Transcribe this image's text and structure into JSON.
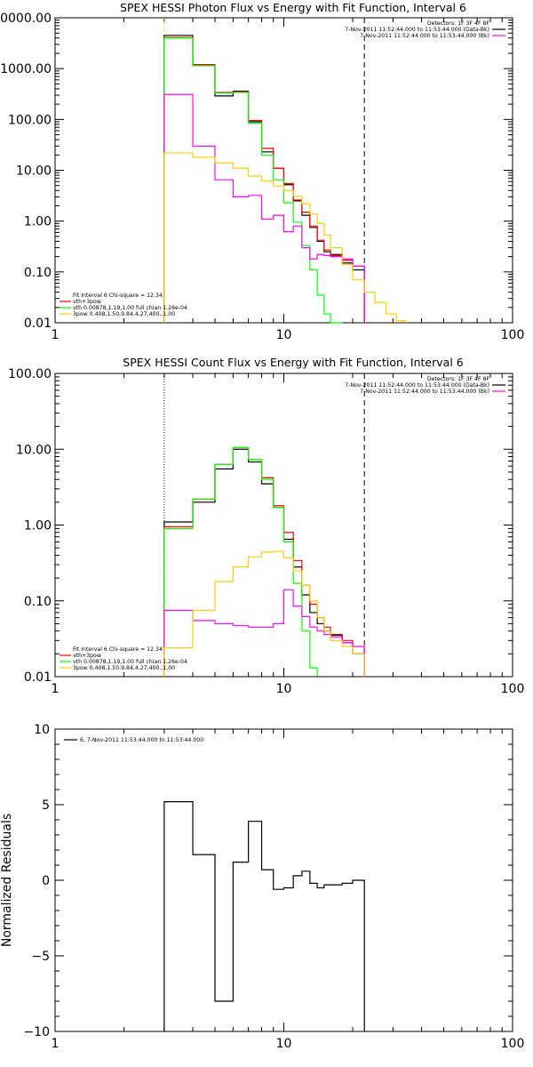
{
  "chart_data": [
    {
      "type": "line",
      "title": "SPEX HESSI Photon Flux vs Energy with Fit Function, Interval 6",
      "xlabel": "",
      "ylabel": "",
      "xscale": "log",
      "yscale": "log",
      "xlim": [
        1,
        100
      ],
      "ylim": [
        0.01,
        10000
      ],
      "x_tick_labels": [
        "1",
        "10",
        "100"
      ],
      "y_tick_labels": [
        "0.01",
        "0.10",
        "1.00",
        "10.00",
        "100.00",
        "1000.00",
        "10000.00"
      ],
      "info_lines": [
        {
          "text": "Detectors: 1F 3F 4F 8F"
        },
        {
          "text": "7-Nov-2011 11:52:44.000 to 11:53:44.000 (Data-Bk)",
          "color": "#000000"
        },
        {
          "text": "7-Nov-2011 11:52:44.000 to 11:53:44.000 (Bk)",
          "color": "#ff00ff"
        }
      ],
      "fit_legend": [
        {
          "text": "Fit Interval 6   Chi-square = 12.34"
        },
        {
          "text": "vth+3pow",
          "color": "#ff0000"
        },
        {
          "text": "vth 0.00878,1.19,1.00  full chian 1.26e-04",
          "color": "#00ff00"
        },
        {
          "text": "3pow 0.408,1.50,9.84,4.27,400.,1.00",
          "color": "#ffcc00"
        }
      ],
      "vlines": [
        {
          "x": 3.0,
          "style": "dotted",
          "color": "#ffcc00"
        },
        {
          "x": 22.5,
          "style": "dashed",
          "color": "#000000"
        }
      ],
      "series": [
        {
          "color": "#000000",
          "edges": [
            3,
            4,
            5,
            6,
            7,
            8,
            9,
            10,
            11,
            12,
            13,
            14,
            15,
            16,
            18,
            20,
            22.5
          ],
          "values": [
            4500,
            1150,
            290,
            360,
            90,
            23,
            11,
            5.2,
            2.5,
            1.3,
            0.75,
            0.4,
            0.25,
            0.22,
            0.15,
            0.11
          ]
        },
        {
          "color": "#ff0000",
          "edges": [
            3,
            4,
            5,
            6,
            7,
            8,
            9,
            10,
            11,
            12,
            13,
            14,
            15,
            16,
            18,
            20,
            22.5
          ],
          "values": [
            4100,
            1200,
            340,
            350,
            95,
            27,
            11,
            5.5,
            2.6,
            1.5,
            0.8,
            0.42,
            0.27,
            0.21,
            0.17,
            0.13
          ]
        },
        {
          "color": "#00ff00",
          "edges": [
            3,
            4,
            5,
            6,
            7,
            8,
            9,
            10,
            11,
            12,
            13,
            14,
            15,
            16,
            18
          ],
          "values": [
            4000,
            1150,
            330,
            340,
            85,
            20,
            6.5,
            2.3,
            0.95,
            0.33,
            0.11,
            0.035,
            0.015,
            0.01
          ]
        },
        {
          "color": "#ff00ff",
          "edges": [
            3,
            4,
            5,
            6,
            7,
            8,
            9,
            10,
            11,
            12,
            13,
            14,
            15,
            16,
            18,
            20,
            22.5
          ],
          "values": [
            310,
            30,
            6.5,
            3,
            3.2,
            1.1,
            1.3,
            0.62,
            0.8,
            0.3,
            0.18,
            0.22,
            0.21,
            0.2,
            0.18,
            0.13
          ]
        },
        {
          "color": "#ffcc00",
          "edges": [
            3,
            4,
            5,
            6,
            7,
            8,
            9,
            10,
            11,
            12,
            13,
            14,
            15,
            16,
            18,
            20,
            22.5,
            25,
            28,
            31,
            34
          ],
          "values": [
            22,
            18,
            14,
            11,
            7.7,
            6.1,
            4.9,
            4,
            3.1,
            2.2,
            1.4,
            0.9,
            0.53,
            0.3,
            0.14,
            0.07,
            0.04,
            0.025,
            0.015,
            0.011
          ]
        }
      ]
    },
    {
      "type": "line",
      "title": "SPEX HESSI Count Flux vs Energy with Fit Function, Interval 6",
      "xlabel": "",
      "ylabel": "",
      "xscale": "log",
      "yscale": "log",
      "xlim": [
        1,
        100
      ],
      "ylim": [
        0.01,
        100
      ],
      "x_tick_labels": [
        "1",
        "10",
        "100"
      ],
      "y_tick_labels": [
        "0.01",
        "0.10",
        "1.00",
        "10.00",
        "100.00"
      ],
      "info_lines": [
        {
          "text": "Detectors: 1F 3F 4F 8F"
        },
        {
          "text": "7-Nov-2011 11:52:44.000 to 11:53:44.000 (Data-Bk)",
          "color": "#000000"
        },
        {
          "text": "7-Nov-2011 11:52:44.000 to 11:53:44.000 (Bk)",
          "color": "#ff00ff"
        }
      ],
      "fit_legend": [
        {
          "text": "Fit Interval 6   Chi-square = 12.34"
        },
        {
          "text": "vth+3pow",
          "color": "#ff0000"
        },
        {
          "text": "vth 0.00878,1.19,1.00  full chian 1.26e-04",
          "color": "#00ff00"
        },
        {
          "text": "3pow 0.408,1.50,9.84,4.27,400.,1.00",
          "color": "#ffcc00"
        }
      ],
      "vlines": [
        {
          "x": 3.0,
          "style": "dotted",
          "color": "#000000"
        },
        {
          "x": 22.5,
          "style": "dashed",
          "color": "#000000"
        }
      ],
      "series": [
        {
          "color": "#000000",
          "edges": [
            3,
            4,
            5,
            6,
            7,
            8,
            9,
            10,
            11,
            12,
            13,
            14,
            15,
            16,
            18,
            20,
            22.5
          ],
          "values": [
            1.1,
            2.0,
            5.5,
            10.0,
            6.8,
            3.5,
            1.7,
            0.65,
            0.28,
            0.12,
            0.07,
            0.05,
            0.04,
            0.035,
            0.028,
            0.02
          ]
        },
        {
          "color": "#ff0000",
          "edges": [
            3,
            4,
            5,
            6,
            7,
            8,
            9,
            10,
            11,
            12,
            13,
            14,
            15,
            16,
            18,
            20,
            22.5
          ],
          "values": [
            0.95,
            2.2,
            6.3,
            10.5,
            7.3,
            4.2,
            1.8,
            0.8,
            0.34,
            0.16,
            0.09,
            0.06,
            0.045,
            0.036,
            0.03,
            0.025
          ]
        },
        {
          "color": "#00ff00",
          "edges": [
            3,
            4,
            5,
            6,
            7,
            8,
            9,
            10,
            11,
            12,
            13,
            14
          ],
          "values": [
            0.9,
            2.2,
            6.3,
            10.5,
            7.3,
            4.0,
            1.7,
            0.6,
            0.17,
            0.04,
            0.013
          ]
        },
        {
          "color": "#ff00ff",
          "edges": [
            3,
            4,
            5,
            6,
            7,
            8,
            9,
            10,
            11,
            12,
            13,
            14,
            15,
            16,
            18,
            20,
            22.5
          ],
          "values": [
            0.075,
            0.055,
            0.05,
            0.047,
            0.045,
            0.045,
            0.05,
            0.14,
            0.085,
            0.062,
            0.045,
            0.04,
            0.036,
            0.033,
            0.028,
            0.025
          ]
        },
        {
          "color": "#ffcc00",
          "edges": [
            3,
            4,
            5,
            6,
            7,
            8,
            9,
            10,
            11,
            12,
            13,
            14,
            15,
            16,
            18,
            20,
            22.5
          ],
          "values": [
            0.024,
            0.075,
            0.18,
            0.28,
            0.38,
            0.44,
            0.45,
            0.37,
            0.25,
            0.16,
            0.1,
            0.06,
            0.04,
            0.03,
            0.025,
            0.02
          ]
        }
      ]
    },
    {
      "type": "line",
      "title": "",
      "xlabel": "",
      "ylabel": "Normalized Residuals",
      "xscale": "log",
      "yscale": "linear",
      "xlim": [
        1,
        100
      ],
      "ylim": [
        -10,
        10
      ],
      "x_tick_labels": [
        "1",
        "10",
        "100"
      ],
      "y_tick_labels": [
        "−10",
        "−5",
        "0",
        "5",
        "10"
      ],
      "info_lines": [
        {
          "text": "6,  7-Nov-2011 11:53:44.000 to 11:53:44.000",
          "color": "#000000"
        }
      ],
      "series": [
        {
          "color": "#000000",
          "edges": [
            3,
            4,
            5,
            6,
            7,
            8,
            9,
            10,
            11,
            12,
            13,
            14,
            15,
            16,
            18,
            20,
            22.5
          ],
          "values": [
            5.2,
            1.7,
            -8.0,
            1.2,
            3.9,
            0.7,
            -0.6,
            -0.5,
            0.3,
            0.6,
            -0.2,
            -0.5,
            -0.3,
            -0.3,
            -0.2,
            0.0
          ]
        }
      ]
    }
  ]
}
